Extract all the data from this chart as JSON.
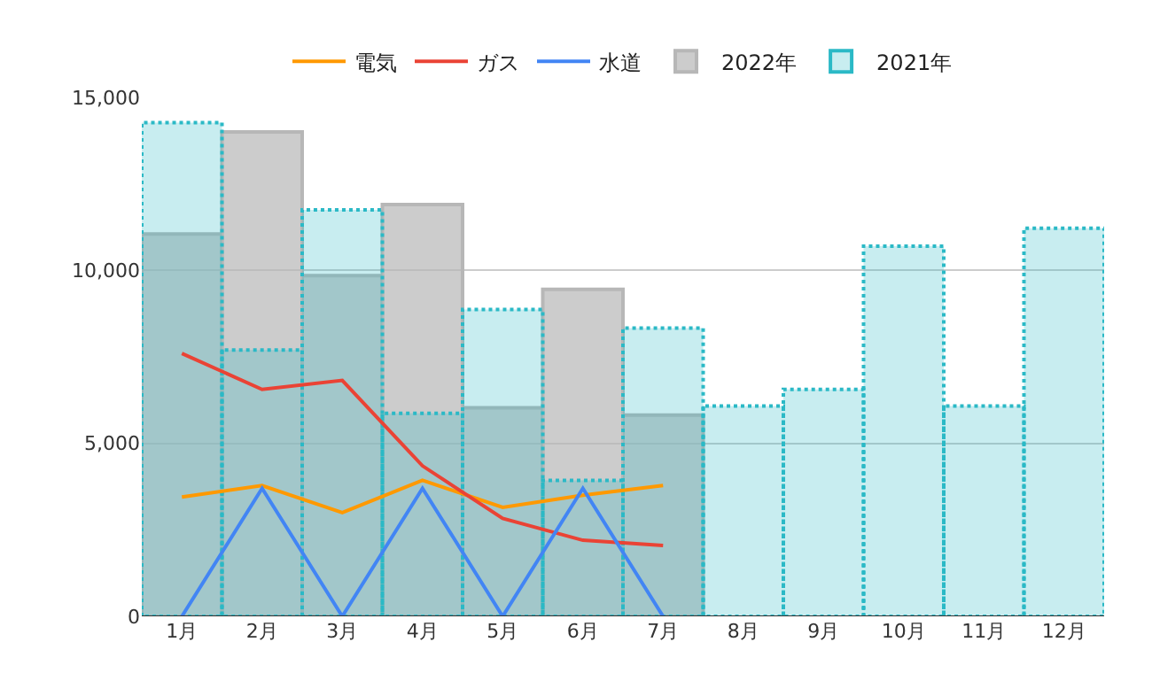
{
  "chart_data": {
    "type": "line",
    "categories": [
      "1月",
      "2月",
      "3月",
      "4月",
      "5月",
      "6月",
      "7月",
      "8月",
      "9月",
      "10月",
      "11月",
      "12月"
    ],
    "series": [
      {
        "name": "電気",
        "color": "#ff9900",
        "values": [
          3450,
          3780,
          3000,
          3930,
          3150,
          3500,
          3780,
          null,
          null,
          null,
          null,
          null
        ]
      },
      {
        "name": "ガス",
        "color": "#ea4335",
        "values": [
          7600,
          6560,
          6820,
          4350,
          2830,
          2200,
          2050,
          null,
          null,
          null,
          null,
          null
        ]
      },
      {
        "name": "水道",
        "color": "#4285f4",
        "values": [
          0,
          3700,
          0,
          3700,
          0,
          3700,
          0,
          null,
          null,
          null,
          null,
          null
        ]
      },
      {
        "name": "2022年",
        "type": "bar",
        "color": "#b7b7b7",
        "line_style": "solid",
        "values": [
          11050,
          14000,
          9850,
          11900,
          6030,
          9450,
          5820,
          null,
          null,
          null,
          null,
          null
        ]
      },
      {
        "name": "2021年",
        "type": "bar",
        "color": "#2bb9c6",
        "line_style": "dotted",
        "values": [
          14270,
          7700,
          11750,
          5870,
          8870,
          3930,
          8330,
          6080,
          6560,
          10700,
          6080,
          11220
        ]
      }
    ],
    "ylim": [
      0,
      15000
    ],
    "yticks": [
      {
        "value": 0,
        "label": "0"
      },
      {
        "value": 5000,
        "label": "5,000"
      },
      {
        "value": 10000,
        "label": "10,000"
      },
      {
        "value": 15000,
        "label": "15,000"
      }
    ],
    "grid": "y",
    "legend": "top"
  }
}
